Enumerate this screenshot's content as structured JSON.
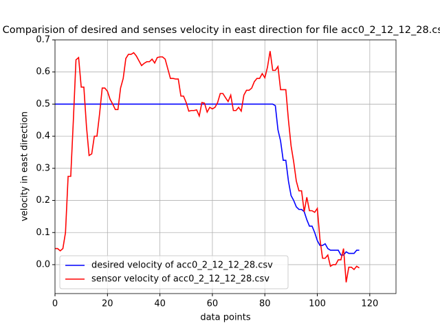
{
  "chart_data": {
    "type": "line",
    "title": "Comparision of desired and senses velocity in east direction for file acc0_2_12_12_28.csv",
    "x_label": "data points",
    "y_label": "velocity in east direction",
    "x": [
      0,
      1,
      2,
      3,
      4,
      5,
      6,
      7,
      8,
      9,
      10,
      11,
      12,
      13,
      14,
      15,
      16,
      17,
      18,
      19,
      20,
      21,
      22,
      23,
      24,
      25,
      26,
      27,
      28,
      29,
      30,
      31,
      32,
      33,
      34,
      35,
      36,
      37,
      38,
      39,
      40,
      41,
      42,
      43,
      44,
      45,
      46,
      47,
      48,
      49,
      50,
      51,
      52,
      53,
      54,
      55,
      56,
      57,
      58,
      59,
      60,
      61,
      62,
      63,
      64,
      65,
      66,
      67,
      68,
      69,
      70,
      71,
      72,
      73,
      74,
      75,
      76,
      77,
      78,
      79,
      80,
      81,
      82,
      83,
      84,
      85,
      86,
      87,
      88,
      89,
      90,
      91,
      92,
      93,
      94,
      95,
      96,
      97,
      98,
      99,
      100,
      101,
      102,
      103,
      104,
      105,
      106,
      107,
      108,
      109,
      110,
      111,
      112,
      113,
      114,
      115,
      116
    ],
    "series": [
      {
        "name": "desired velocity of acc0_2_12_12_28.csv",
        "color": "#0000ff",
        "values": [
          0.5,
          0.5,
          0.5,
          0.5,
          0.5,
          0.5,
          0.5,
          0.5,
          0.5,
          0.5,
          0.5,
          0.5,
          0.5,
          0.5,
          0.5,
          0.5,
          0.5,
          0.5,
          0.5,
          0.5,
          0.5,
          0.5,
          0.5,
          0.5,
          0.5,
          0.5,
          0.5,
          0.5,
          0.5,
          0.5,
          0.5,
          0.5,
          0.5,
          0.5,
          0.5,
          0.5,
          0.5,
          0.5,
          0.5,
          0.5,
          0.5,
          0.5,
          0.5,
          0.5,
          0.5,
          0.5,
          0.5,
          0.5,
          0.5,
          0.5,
          0.5,
          0.5,
          0.5,
          0.5,
          0.5,
          0.5,
          0.5,
          0.5,
          0.5,
          0.5,
          0.5,
          0.5,
          0.5,
          0.5,
          0.5,
          0.5,
          0.5,
          0.5,
          0.5,
          0.5,
          0.5,
          0.5,
          0.5,
          0.5,
          0.5,
          0.5,
          0.5,
          0.5,
          0.5,
          0.5,
          0.5,
          0.5,
          0.5,
          0.5,
          0.495,
          0.42,
          0.385,
          0.325,
          0.325,
          0.26,
          0.215,
          0.2,
          0.18,
          0.172,
          0.172,
          0.165,
          0.14,
          0.12,
          0.12,
          0.1,
          0.075,
          0.06,
          0.06,
          0.065,
          0.05,
          0.045,
          0.045,
          0.045,
          0.045,
          0.03,
          0.03,
          0.04,
          0.035,
          0.035,
          0.035,
          0.045,
          0.045
        ]
      },
      {
        "name": "sensor velocity of acc0_2_12_12_28.csv",
        "color": "#ff0000",
        "values": [
          0.05,
          0.05,
          0.043,
          0.05,
          0.1,
          0.275,
          0.275,
          0.45,
          0.638,
          0.645,
          0.553,
          0.553,
          0.43,
          0.34,
          0.345,
          0.4,
          0.4,
          0.47,
          0.55,
          0.55,
          0.54,
          0.515,
          0.5,
          0.483,
          0.483,
          0.55,
          0.58,
          0.642,
          0.655,
          0.655,
          0.66,
          0.65,
          0.635,
          0.62,
          0.627,
          0.632,
          0.632,
          0.64,
          0.628,
          0.645,
          0.647,
          0.647,
          0.64,
          0.61,
          0.58,
          0.58,
          0.578,
          0.578,
          0.525,
          0.525,
          0.505,
          0.478,
          0.48,
          0.48,
          0.482,
          0.463,
          0.505,
          0.503,
          0.475,
          0.49,
          0.485,
          0.49,
          0.505,
          0.533,
          0.533,
          0.52,
          0.508,
          0.528,
          0.48,
          0.48,
          0.49,
          0.478,
          0.528,
          0.543,
          0.543,
          0.55,
          0.57,
          0.58,
          0.58,
          0.595,
          0.582,
          0.615,
          0.665,
          0.605,
          0.605,
          0.617,
          0.545,
          0.545,
          0.545,
          0.45,
          0.37,
          0.32,
          0.26,
          0.23,
          0.23,
          0.165,
          0.21,
          0.168,
          0.168,
          0.163,
          0.175,
          0.08,
          0.02,
          0.02,
          0.03,
          -0.005,
          0.0,
          0.0,
          0.015,
          0.015,
          0.05,
          -0.055,
          -0.008,
          -0.008,
          -0.015,
          -0.005,
          -0.01
        ]
      }
    ],
    "xlim": [
      0,
      130
    ],
    "ylim": [
      -0.09,
      0.7
    ],
    "xticks": [
      0,
      20,
      40,
      60,
      80,
      100,
      120
    ],
    "yticks": [
      {
        "value": 0,
        "label": "0.0"
      },
      0.1,
      0.2,
      0.3,
      0.4,
      0.5,
      0.6,
      0.7
    ],
    "grid": true,
    "legend": "lower left"
  }
}
